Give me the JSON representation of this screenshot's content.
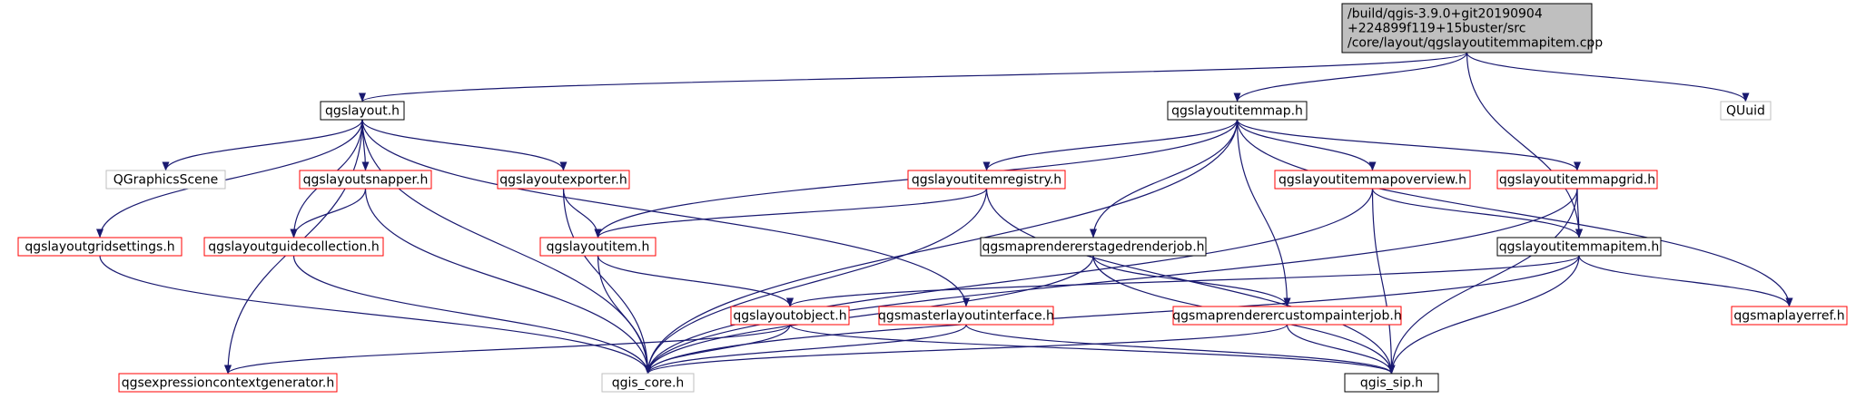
{
  "colors": {
    "edge": "#191970",
    "border_documented": "#000000",
    "border_undocumented": "#ff0000",
    "border_external": "#bfbfbf",
    "fill_root": "#bfbfbf",
    "fill_default": "#ffffff"
  },
  "nodes": [
    {
      "id": "root",
      "lines": [
        "/build/qgis-3.9.0+git20190904",
        "+224899f119+15buster/src",
        "/core/layout/qgslayoutitemmapitem.cpp"
      ],
      "style": "root"
    },
    {
      "id": "qgslayout_h",
      "lines": [
        "qgslayout.h"
      ],
      "style": "documented"
    },
    {
      "id": "qgslayoutitemmap_h",
      "lines": [
        "qgslayoutitemmap.h"
      ],
      "style": "documented"
    },
    {
      "id": "quuid",
      "lines": [
        "QUuid"
      ],
      "style": "external"
    },
    {
      "id": "qgraphicsscene",
      "lines": [
        "QGraphicsScene"
      ],
      "style": "external"
    },
    {
      "id": "qgslayoutsnapper_h",
      "lines": [
        "qgslayoutsnapper.h"
      ],
      "style": "undocumented"
    },
    {
      "id": "qgslayoutexporter_h",
      "lines": [
        "qgslayoutexporter.h"
      ],
      "style": "undocumented"
    },
    {
      "id": "qgslayoutitemregistry_h",
      "lines": [
        "qgslayoutitemregistry.h"
      ],
      "style": "undocumented"
    },
    {
      "id": "qgslayoutitemmapoverview_h",
      "lines": [
        "qgslayoutitemmapoverview.h"
      ],
      "style": "undocumented"
    },
    {
      "id": "qgslayoutitemmapgrid_h",
      "lines": [
        "qgslayoutitemmapgrid.h"
      ],
      "style": "undocumented"
    },
    {
      "id": "qgslayoutgridsettings_h",
      "lines": [
        "qgslayoutgridsettings.h"
      ],
      "style": "undocumented"
    },
    {
      "id": "qgslayoutguidecollection_h",
      "lines": [
        "qgslayoutguidecollection.h"
      ],
      "style": "undocumented"
    },
    {
      "id": "qgslayoutitem_h",
      "lines": [
        "qgslayoutitem.h"
      ],
      "style": "undocumented"
    },
    {
      "id": "qgsmaprendererstagedrenderjob_h",
      "lines": [
        "qgsmaprendererstagedrenderjob.h"
      ],
      "style": "documented"
    },
    {
      "id": "qgslayoutitemmapitem_h",
      "lines": [
        "qgslayoutitemmapitem.h"
      ],
      "style": "documented"
    },
    {
      "id": "qgslayoutobject_h",
      "lines": [
        "qgslayoutobject.h"
      ],
      "style": "undocumented"
    },
    {
      "id": "qgsmasterlayoutinterface_h",
      "lines": [
        "qgsmasterlayoutinterface.h"
      ],
      "style": "undocumented"
    },
    {
      "id": "qgsmaprenderercustompainterjob_h",
      "lines": [
        "qgsmaprenderercustompainterjob.h"
      ],
      "style": "undocumented"
    },
    {
      "id": "qgsmaplayerref_h",
      "lines": [
        "qgsmaplayerref.h"
      ],
      "style": "undocumented"
    },
    {
      "id": "qgsexpressioncontextgenerator_h",
      "lines": [
        "qgsexpressioncontextgenerator.h"
      ],
      "style": "undocumented"
    },
    {
      "id": "qgis_core_h",
      "lines": [
        "qgis_core.h"
      ],
      "style": "external"
    },
    {
      "id": "qgis_sip_h",
      "lines": [
        "qgis_sip.h"
      ],
      "style": "documented"
    }
  ],
  "edges": [
    [
      "root",
      "qgslayout_h"
    ],
    [
      "root",
      "qgslayoutitemmap_h"
    ],
    [
      "root",
      "qgslayoutitemmapitem_h"
    ],
    [
      "root",
      "quuid"
    ],
    [
      "qgslayout_h",
      "qgraphicsscene"
    ],
    [
      "qgslayout_h",
      "qgslayoutsnapper_h"
    ],
    [
      "qgslayout_h",
      "qgslayoutexporter_h"
    ],
    [
      "qgslayout_h",
      "qgslayoutgridsettings_h"
    ],
    [
      "qgslayout_h",
      "qgslayoutguidecollection_h"
    ],
    [
      "qgslayout_h",
      "qgsexpressioncontextgenerator_h"
    ],
    [
      "qgslayout_h",
      "qgis_core_h"
    ],
    [
      "qgslayout_h",
      "qgsmasterlayoutinterface_h"
    ],
    [
      "qgslayoutitemmap_h",
      "qgslayoutitemregistry_h"
    ],
    [
      "qgslayoutitemmap_h",
      "qgslayoutitemmapoverview_h"
    ],
    [
      "qgslayoutitemmap_h",
      "qgslayoutitemmapgrid_h"
    ],
    [
      "qgslayoutitemmap_h",
      "qgslayoutitem_h"
    ],
    [
      "qgslayoutitemmap_h",
      "qgsmaprendererstagedrenderjob_h"
    ],
    [
      "qgslayoutitemmap_h",
      "qgsmaprenderercustompainterjob_h"
    ],
    [
      "qgslayoutitemmap_h",
      "qgsmaplayerref_h"
    ],
    [
      "qgslayoutitemmap_h",
      "qgis_core_h"
    ],
    [
      "qgslayoutsnapper_h",
      "qgslayoutguidecollection_h"
    ],
    [
      "qgslayoutsnapper_h",
      "qgis_core_h"
    ],
    [
      "qgslayoutexporter_h",
      "qgslayoutitem_h"
    ],
    [
      "qgslayoutexporter_h",
      "qgis_core_h"
    ],
    [
      "qgslayoutitemregistry_h",
      "qgslayoutitem_h"
    ],
    [
      "qgslayoutitemregistry_h",
      "qgis_core_h"
    ],
    [
      "qgslayoutitemregistry_h",
      "qgis_sip_h"
    ],
    [
      "qgslayoutitemmapoverview_h",
      "qgslayoutitemmapitem_h"
    ],
    [
      "qgslayoutitemmapoverview_h",
      "qgis_core_h"
    ],
    [
      "qgslayoutitemmapoverview_h",
      "qgis_sip_h"
    ],
    [
      "qgslayoutitemmapgrid_h",
      "qgslayoutitemmapitem_h"
    ],
    [
      "qgslayoutitemmapgrid_h",
      "qgis_core_h"
    ],
    [
      "qgslayoutitemmapgrid_h",
      "qgis_sip_h"
    ],
    [
      "qgslayoutgridsettings_h",
      "qgis_core_h"
    ],
    [
      "qgslayoutguidecollection_h",
      "qgis_core_h"
    ],
    [
      "qgslayoutitem_h",
      "qgslayoutobject_h"
    ],
    [
      "qgslayoutitem_h",
      "qgis_core_h"
    ],
    [
      "qgsmaprendererstagedrenderjob_h",
      "qgsmaprenderercustompainterjob_h"
    ],
    [
      "qgsmaprendererstagedrenderjob_h",
      "qgis_core_h"
    ],
    [
      "qgsmaprendererstagedrenderjob_h",
      "qgis_sip_h"
    ],
    [
      "qgslayoutitemmapitem_h",
      "qgslayoutobject_h"
    ],
    [
      "qgslayoutitemmapitem_h",
      "qgsmaplayerref_h"
    ],
    [
      "qgslayoutitemmapitem_h",
      "qgis_core_h"
    ],
    [
      "qgslayoutitemmapitem_h",
      "qgis_sip_h"
    ],
    [
      "qgslayoutobject_h",
      "qgsexpressioncontextgenerator_h"
    ],
    [
      "qgslayoutobject_h",
      "qgis_core_h"
    ],
    [
      "qgslayoutobject_h",
      "qgis_sip_h"
    ],
    [
      "qgsmasterlayoutinterface_h",
      "qgis_core_h"
    ],
    [
      "qgsmasterlayoutinterface_h",
      "qgis_sip_h"
    ],
    [
      "qgsmaprenderercustompainterjob_h",
      "qgis_core_h"
    ],
    [
      "qgsmaprenderercustompainterjob_h",
      "qgis_sip_h"
    ]
  ]
}
